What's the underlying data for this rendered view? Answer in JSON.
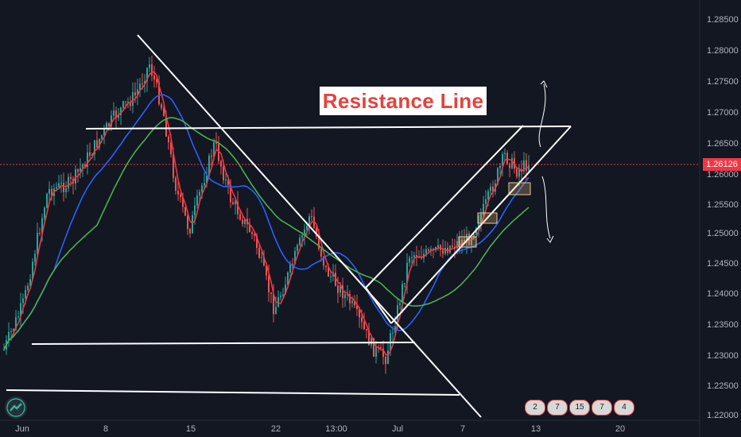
{
  "chart_data": {
    "type": "candlestick",
    "title": "",
    "annotation": "Resistance Line",
    "last_price": "1.26126",
    "y_ticks": [
      "1.28500",
      "1.28000",
      "1.27500",
      "1.27000",
      "1.26500",
      "1.26000",
      "1.25500",
      "1.25000",
      "1.24500",
      "1.24000",
      "1.23500",
      "1.23000",
      "1.22500",
      "1.22000"
    ],
    "ylim": [
      1.2195,
      1.288
    ],
    "x_ticks": [
      "Jun",
      "8",
      "15",
      "22",
      "13:00",
      "Jul",
      "7",
      "13",
      "20"
    ],
    "series": [
      {
        "name": "",
        "color": "#f23645",
        "kind": "ema-fast"
      },
      {
        "name": "",
        "color": "#2962ff",
        "kind": "ma-mid"
      },
      {
        "name": "",
        "color": "#4caf50",
        "kind": "ma-slow"
      }
    ],
    "event_badges": [
      "2",
      "7",
      "15",
      "7",
      "4"
    ],
    "colors": {
      "up": "#26a69a",
      "down": "#ef5350",
      "background": "#131722",
      "trendline": "#ffffff"
    }
  }
}
